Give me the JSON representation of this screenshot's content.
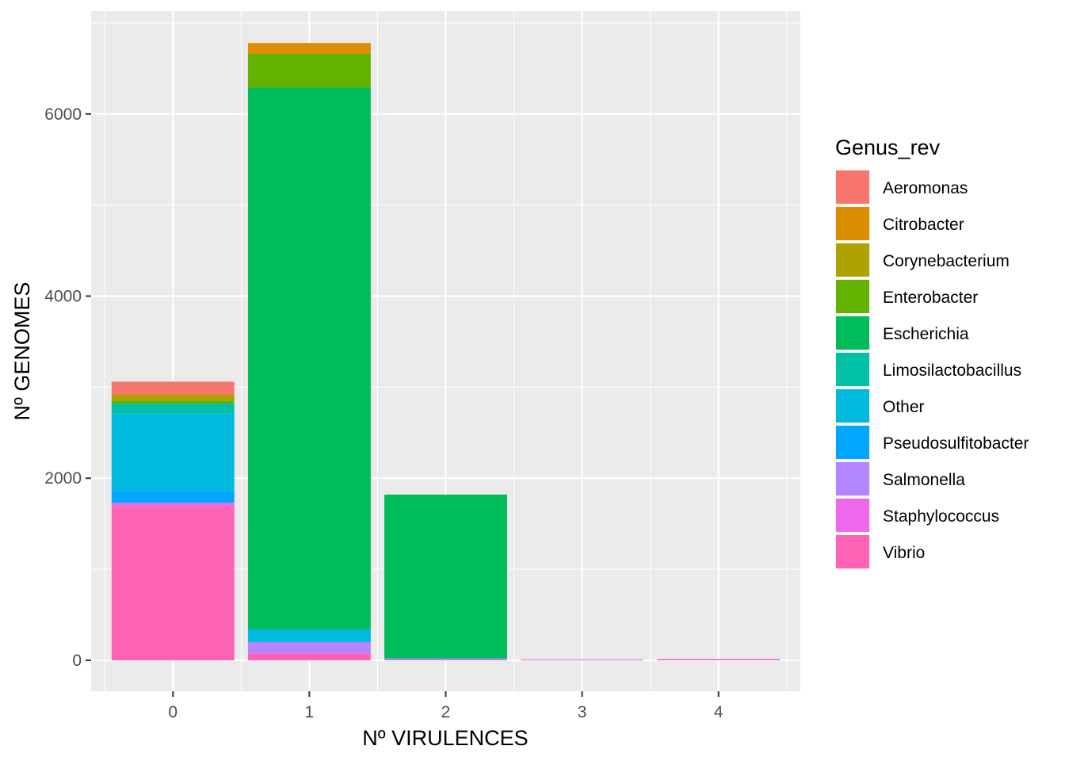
{
  "chart_data": {
    "type": "bar",
    "stacked": true,
    "title": "",
    "xlabel": "Nº VIRULENCES",
    "ylabel": "Nº GENOMES",
    "categories": [
      "0",
      "1",
      "2",
      "3",
      "4"
    ],
    "x_ticks": [
      "0",
      "1",
      "2",
      "3",
      "4"
    ],
    "y_ticks": [
      "0",
      "2000",
      "4000",
      "6000"
    ],
    "y_tick_values": [
      0,
      2000,
      4000,
      6000
    ],
    "xlim": [
      -0.6,
      4.6
    ],
    "ylim": [
      -340,
      7130
    ],
    "grid": true,
    "panel_background": "#EBEBEB",
    "legend": {
      "title": "Genus_rev",
      "position": "right"
    },
    "series": [
      {
        "name": "Aeromonas",
        "color": "#F8766D",
        "values": [
          140,
          0,
          0,
          0,
          0
        ]
      },
      {
        "name": "Citrobacter",
        "color": "#DB8E00",
        "values": [
          0,
          120,
          0,
          0,
          0
        ]
      },
      {
        "name": "Corynebacterium",
        "color": "#AEA200",
        "values": [
          70,
          0,
          0,
          0,
          0
        ]
      },
      {
        "name": "Enterobacter",
        "color": "#64B200",
        "values": [
          30,
          370,
          0,
          0,
          0
        ]
      },
      {
        "name": "Escherichia",
        "color": "#00BD5C",
        "values": [
          0,
          5950,
          1800,
          0,
          0
        ]
      },
      {
        "name": "Limosilactobacillus",
        "color": "#00C1A7",
        "values": [
          110,
          0,
          0,
          0,
          0
        ]
      },
      {
        "name": "Other",
        "color": "#00BADE",
        "values": [
          850,
          140,
          0,
          0,
          0
        ]
      },
      {
        "name": "Pseudosulfitobacter",
        "color": "#00A6FF",
        "values": [
          130,
          0,
          0,
          0,
          0
        ]
      },
      {
        "name": "Salmonella",
        "color": "#B385FF",
        "values": [
          0,
          120,
          15,
          0,
          0
        ]
      },
      {
        "name": "Staphylococcus",
        "color": "#EF67EB",
        "values": [
          40,
          10,
          5,
          8,
          15
        ]
      },
      {
        "name": "Vibrio",
        "color": "#FF63B6",
        "values": [
          1690,
          70,
          0,
          0,
          0
        ]
      }
    ]
  }
}
